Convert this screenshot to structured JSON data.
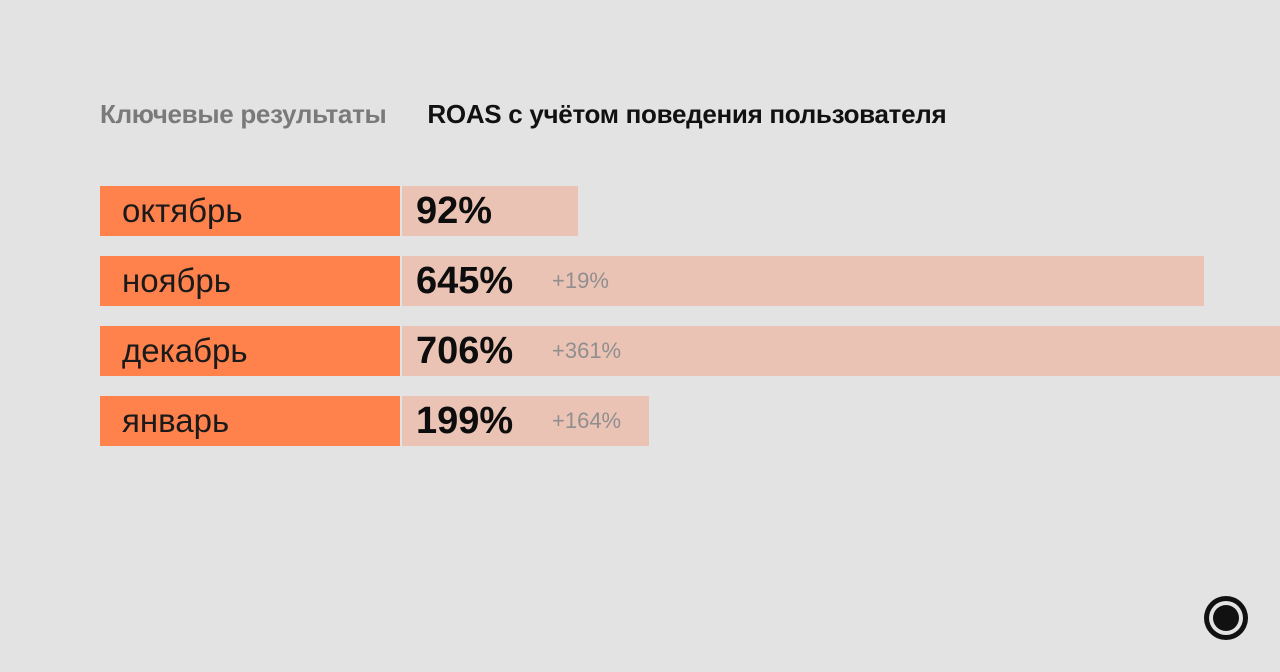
{
  "header": {
    "section_label": "Ключевые результаты",
    "title": "ROAS с учётом поведения пользователя"
  },
  "chart_data": {
    "type": "bar",
    "orientation": "horizontal",
    "title": "ROAS с учётом поведения пользователя",
    "categories": [
      "октябрь",
      "ноябрь",
      "декабрь",
      "январь"
    ],
    "values": [
      92,
      645,
      706,
      199
    ],
    "value_labels": [
      "92%",
      "645%",
      "706%",
      "199%"
    ],
    "deltas": [
      "",
      "+19%",
      "+361%",
      "+164%"
    ],
    "xlim": [
      0,
      706
    ],
    "grid": false,
    "legend": "none",
    "colors": {
      "category_cell": "#ff824d",
      "bar": "#ebc3b5",
      "background": "#e3e3e3"
    }
  },
  "logo": {
    "icon": "ring-dot-logo-icon"
  }
}
